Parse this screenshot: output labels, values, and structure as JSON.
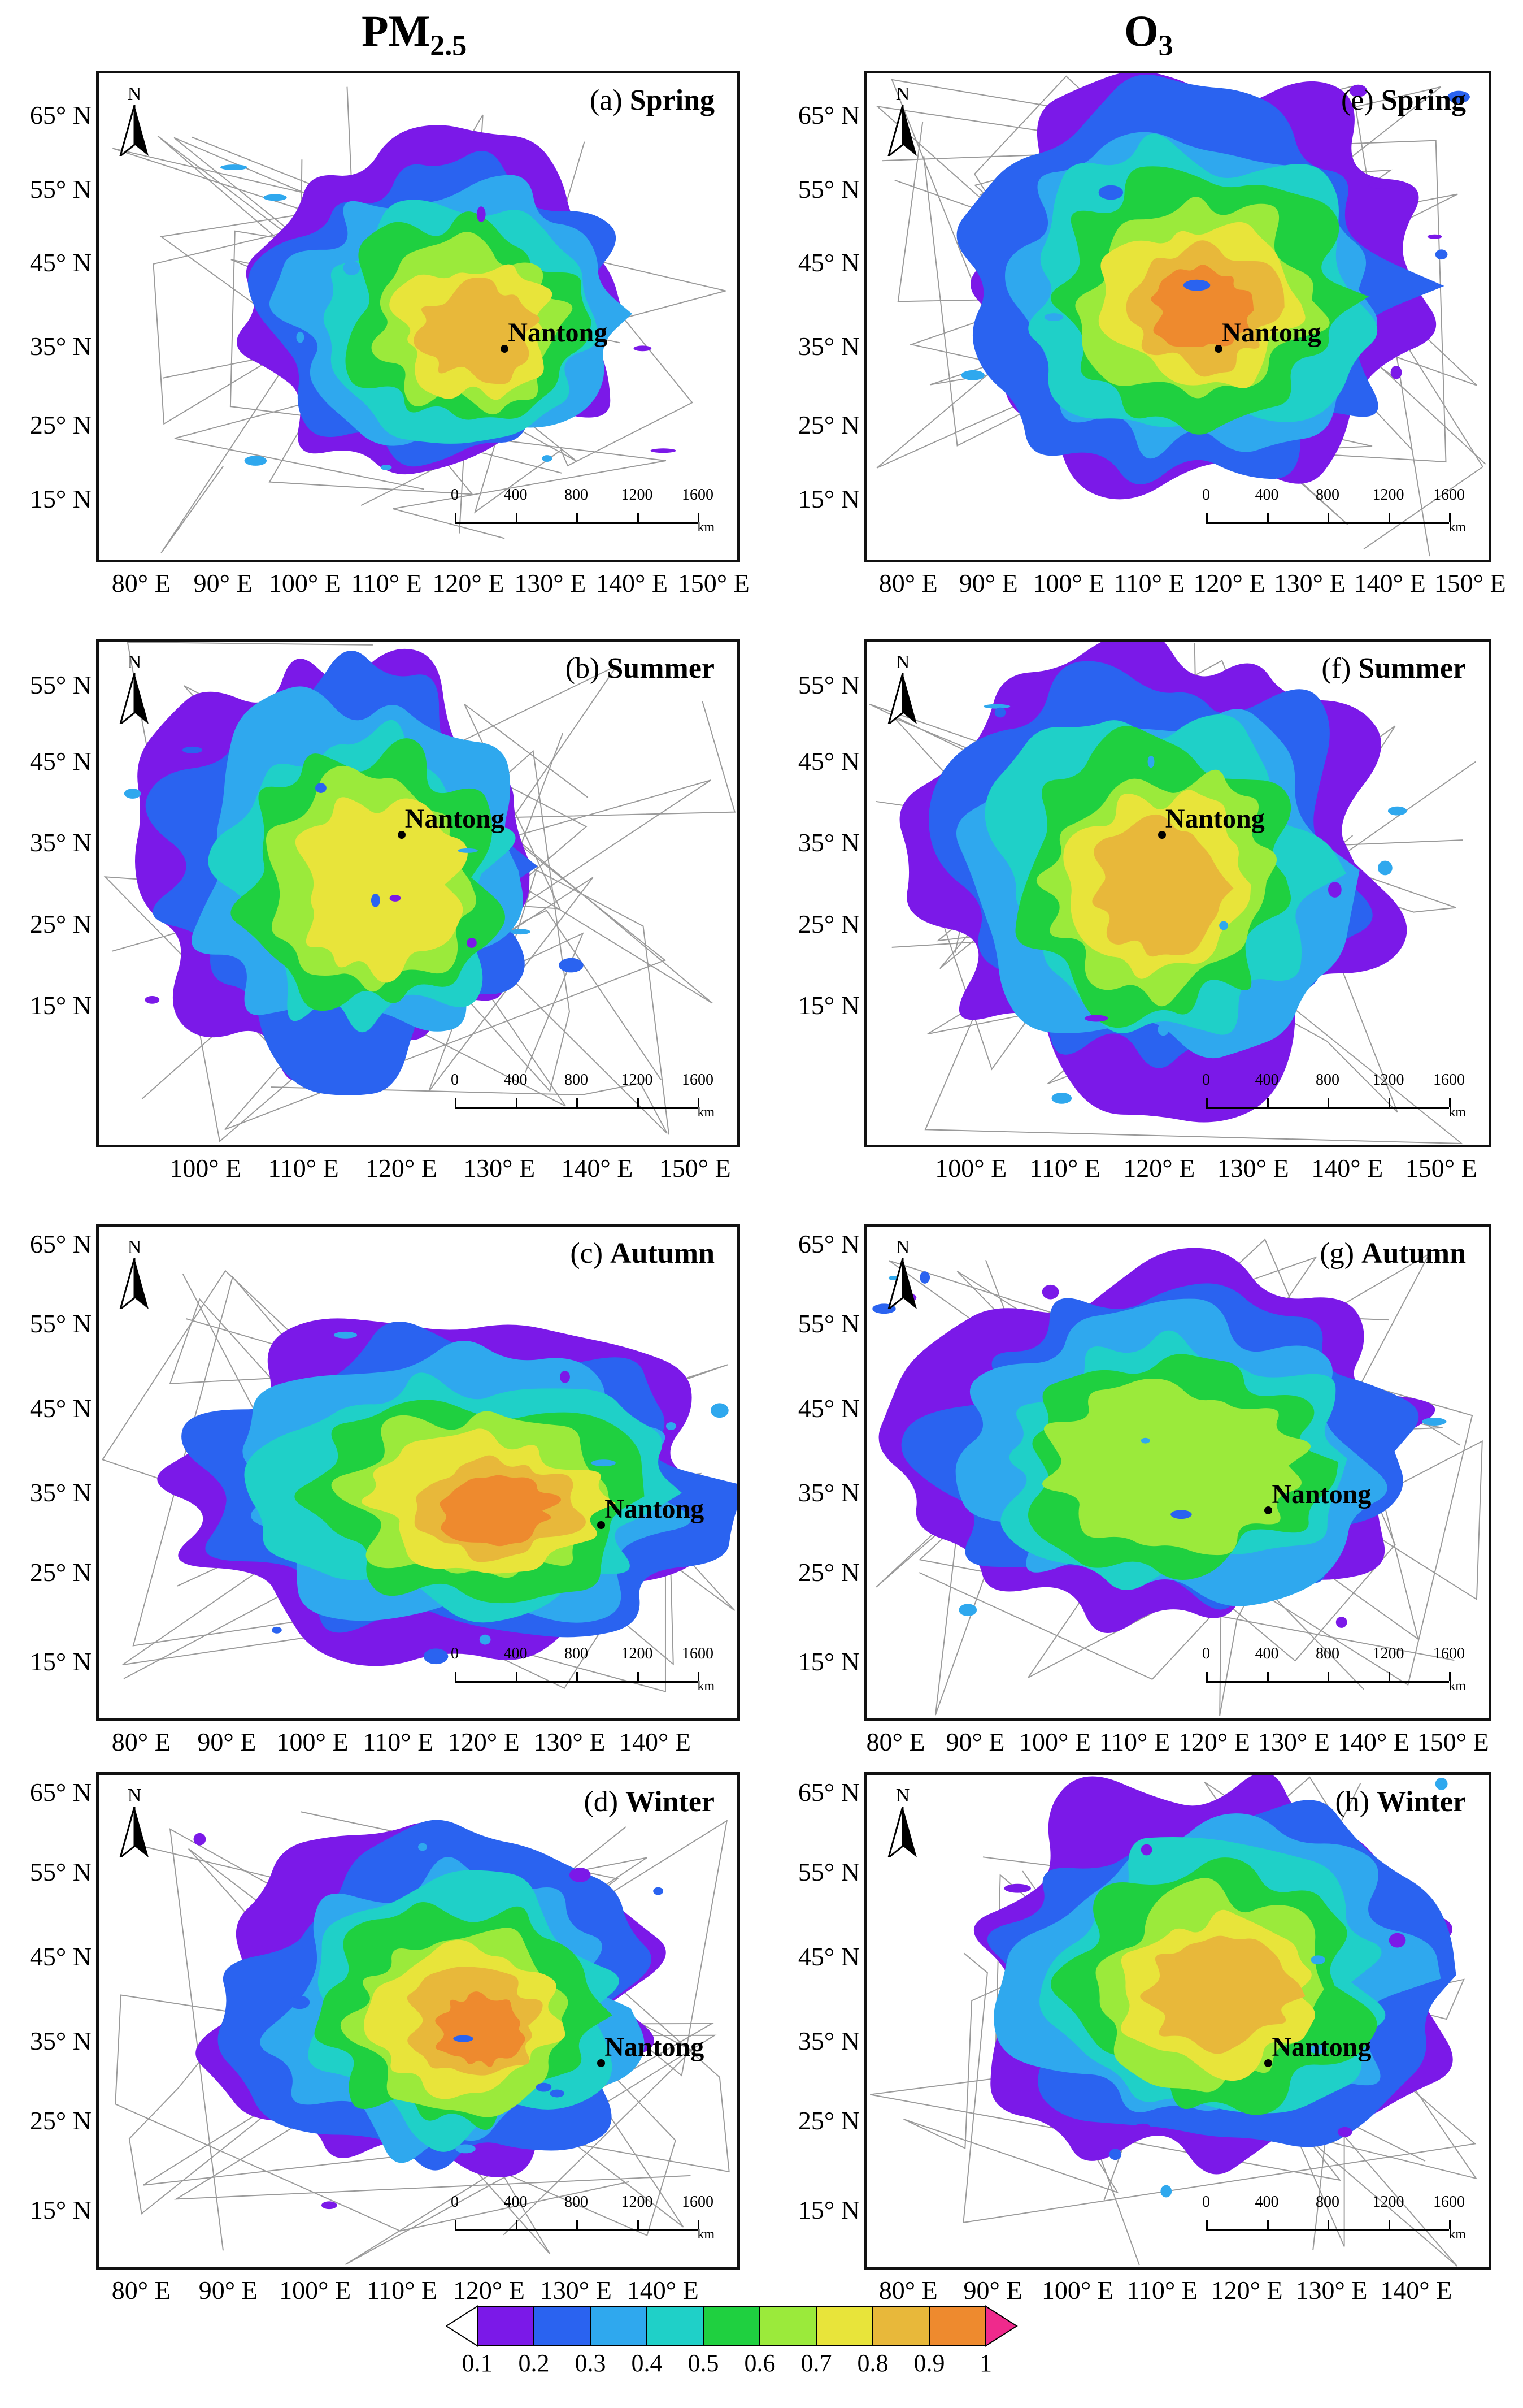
{
  "columns": [
    {
      "title_main": "PM",
      "title_sub": "2.5"
    },
    {
      "title_main": "O",
      "title_sub": "3"
    }
  ],
  "north_label": "N",
  "city": "Nantong",
  "scale": {
    "ticks": [
      "0",
      "400",
      "800",
      "1200",
      "1600"
    ],
    "unit": "km"
  },
  "colors": {
    "outline": "#9a9a9a",
    "province": "#8c8c8c",
    "scale": [
      "#ffffff",
      "#7b19e8",
      "#2a63f0",
      "#2fa8ee",
      "#1fd0c8",
      "#1fd040",
      "#9bea3b",
      "#e8e43a",
      "#e8b83a",
      "#ee8a2e",
      "#f04a3e",
      "#ef2a8c"
    ]
  },
  "legend": {
    "labels": [
      "0.1",
      "0.2",
      "0.3",
      "0.4",
      "0.5",
      "0.6",
      "0.7",
      "0.8",
      "0.9",
      "1"
    ]
  },
  "panels": [
    {
      "id": "a",
      "letter": "(a)",
      "season": "Spring",
      "lat": [
        "65° N",
        "55° N",
        "45° N",
        "35° N",
        "25° N",
        "15° N"
      ],
      "lon": [
        "80° E",
        "90° E",
        "100° E",
        "110° E",
        "120° E",
        "130° E",
        "140° E",
        "150° E"
      ]
    },
    {
      "id": "e",
      "letter": "(e)",
      "season": "Spring",
      "lat": [
        "65° N",
        "55° N",
        "45° N",
        "35° N",
        "25° N",
        "15° N"
      ],
      "lon": [
        "80° E",
        "90° E",
        "100° E",
        "110° E",
        "120° E",
        "130° E",
        "140° E",
        "150° E"
      ]
    },
    {
      "id": "b",
      "letter": "(b)",
      "season": "Summer",
      "lat": [
        "55° N",
        "45° N",
        "35° N",
        "25° N",
        "15° N"
      ],
      "lon": [
        "100° E",
        "110° E",
        "120° E",
        "130° E",
        "140° E",
        "150° E"
      ]
    },
    {
      "id": "f",
      "letter": "(f)",
      "season": "Summer",
      "lat": [
        "55° N",
        "45° N",
        "35° N",
        "25° N",
        "15° N"
      ],
      "lon": [
        "100° E",
        "110° E",
        "120° E",
        "130° E",
        "140° E",
        "150° E"
      ]
    },
    {
      "id": "c",
      "letter": "(c)",
      "season": "Autumn",
      "lat": [
        "65° N",
        "55° N",
        "45° N",
        "35° N",
        "25° N",
        "15° N"
      ],
      "lon": [
        "80° E",
        "90° E",
        "100° E",
        "110° E",
        "120° E",
        "130° E",
        "140° E"
      ]
    },
    {
      "id": "g",
      "letter": "(g)",
      "season": "Autumn",
      "lat": [
        "65° N",
        "55° N",
        "45° N",
        "35° N",
        "25° N",
        "15° N"
      ],
      "lon": [
        "80° E",
        "90° E",
        "100° E",
        "110° E",
        "120° E",
        "130° E",
        "140° E",
        "150° E"
      ]
    },
    {
      "id": "d",
      "letter": "(d)",
      "season": "Winter",
      "lat": [
        "65° N",
        "55° N",
        "45° N",
        "35° N",
        "25° N",
        "15° N"
      ],
      "lon": [
        "80° E",
        "90° E",
        "100° E",
        "110° E",
        "120° E",
        "130° E",
        "140° E"
      ]
    },
    {
      "id": "h",
      "letter": "(h)",
      "season": "Winter",
      "lat": [
        "65° N",
        "55° N",
        "45° N",
        "35° N",
        "25° N",
        "15° N"
      ],
      "lon": [
        "80° E",
        "90° E",
        "100° E",
        "110° E",
        "120° E",
        "130° E",
        "140° E"
      ]
    }
  ]
}
